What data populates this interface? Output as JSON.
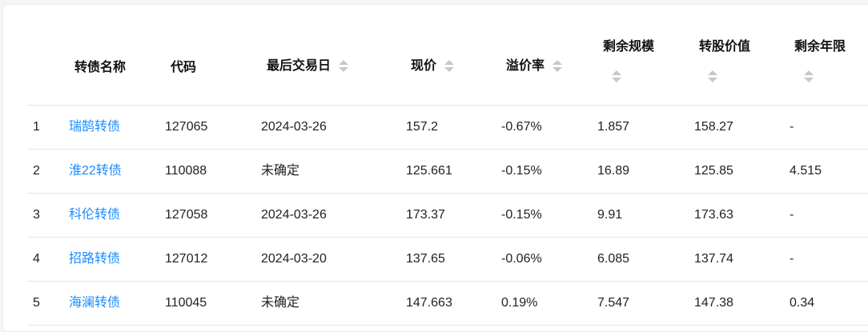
{
  "columns": {
    "name": "转债名称",
    "code": "代码",
    "last_trade": "最后交易日",
    "price": "现价",
    "premium": "溢价率",
    "scale": "剩余规模",
    "conv_value": "转股价值",
    "years": "剩余年限"
  },
  "rows": [
    {
      "idx": "1",
      "name": "瑞鹄转债",
      "code": "127065",
      "last_trade": "2024-03-26",
      "price": "157.2",
      "premium": "-0.67%",
      "scale": "1.857",
      "conv_value": "158.27",
      "years": "-"
    },
    {
      "idx": "2",
      "name": "淮22转债",
      "code": "110088",
      "last_trade": "未确定",
      "price": "125.661",
      "premium": "-0.15%",
      "scale": "16.89",
      "conv_value": "125.85",
      "years": "4.515"
    },
    {
      "idx": "3",
      "name": "科伦转债",
      "code": "127058",
      "last_trade": "2024-03-26",
      "price": "173.37",
      "premium": "-0.15%",
      "scale": "9.91",
      "conv_value": "173.63",
      "years": "-"
    },
    {
      "idx": "4",
      "name": "招路转债",
      "code": "127012",
      "last_trade": "2024-03-20",
      "price": "137.65",
      "premium": "-0.06%",
      "scale": "6.085",
      "conv_value": "137.74",
      "years": "-"
    },
    {
      "idx": "5",
      "name": "海澜转债",
      "code": "110045",
      "last_trade": "未确定",
      "price": "147.663",
      "premium": "0.19%",
      "scale": "7.547",
      "conv_value": "147.38",
      "years": "0.34"
    }
  ],
  "colors": {
    "link": "#1a8cff",
    "sort_icon": "#c5c8cf"
  }
}
